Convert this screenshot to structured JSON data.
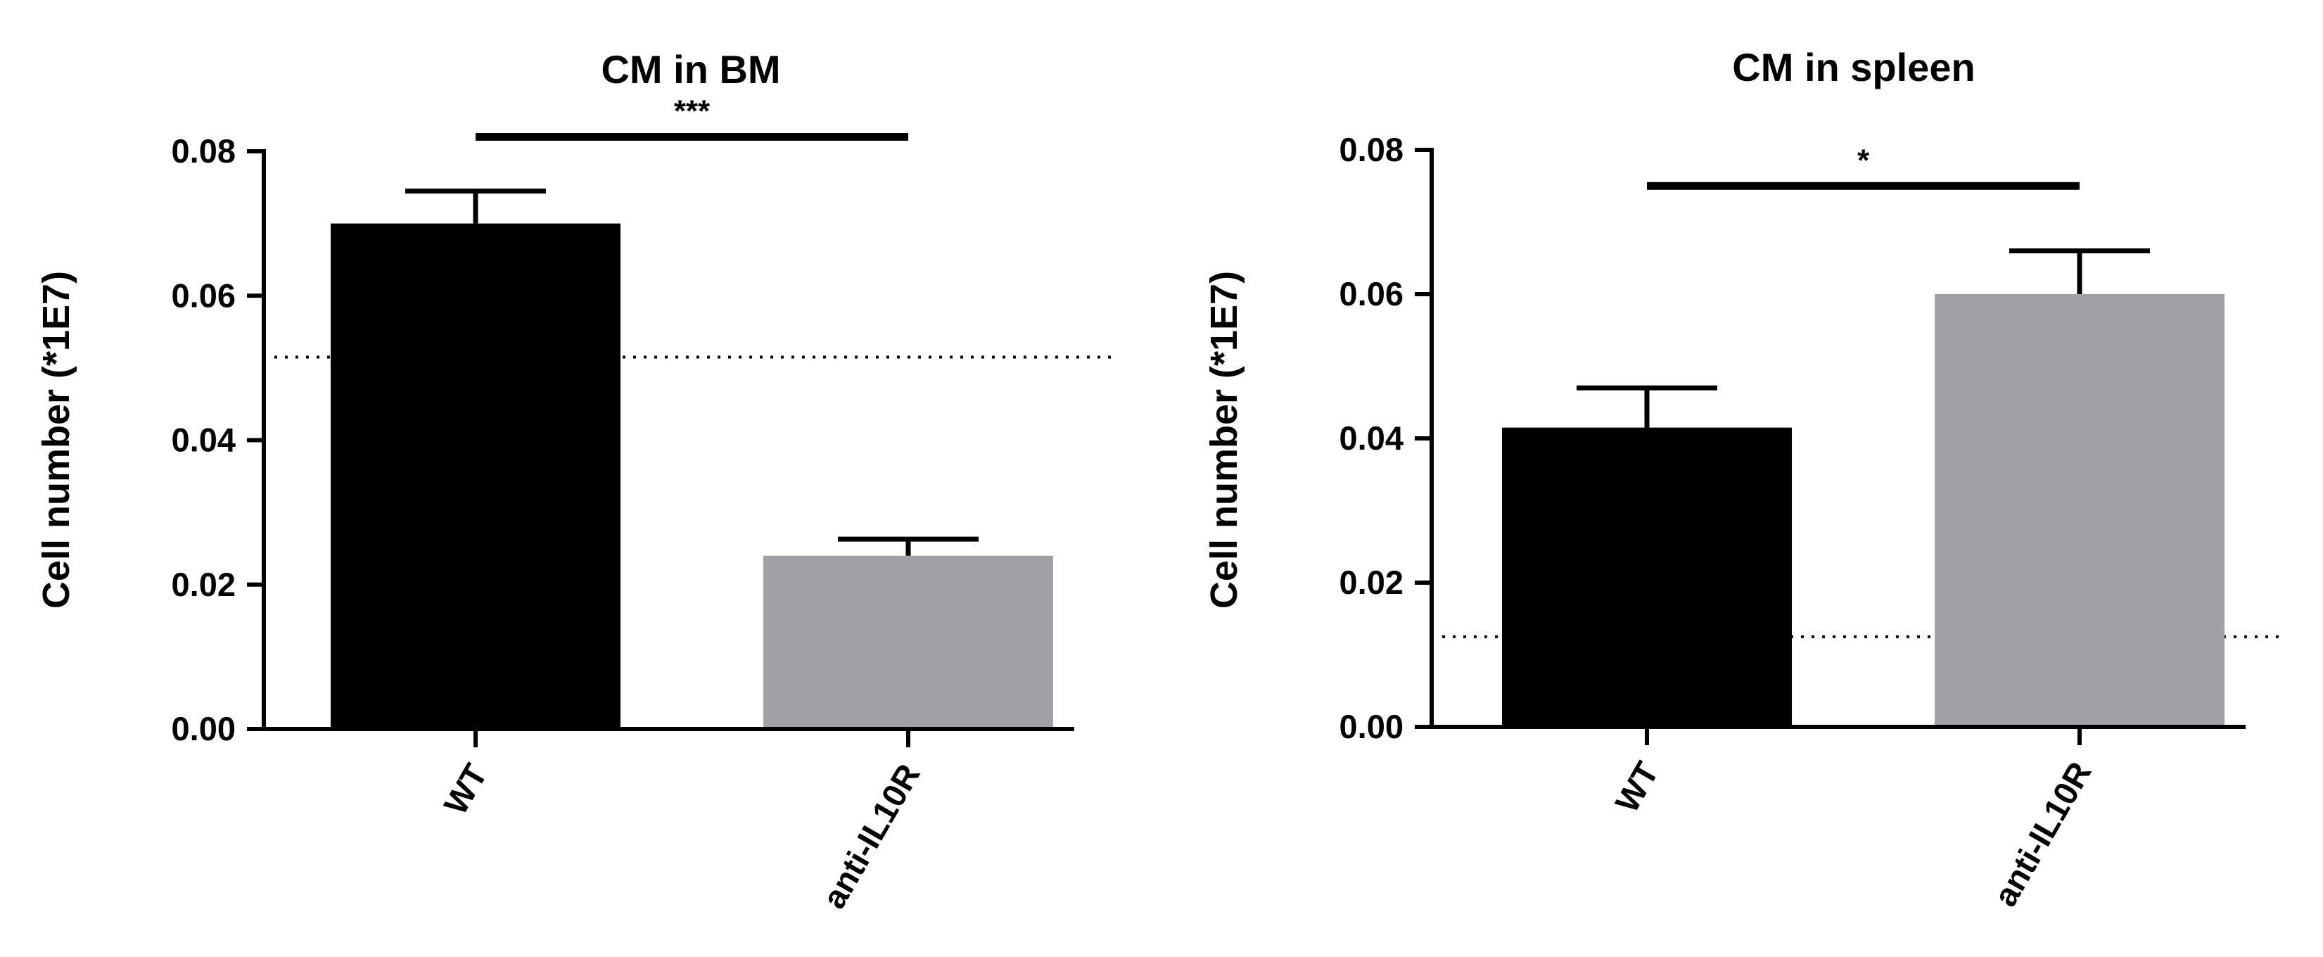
{
  "chart_data": [
    {
      "type": "bar",
      "title": "CM in BM",
      "xlabel": "",
      "ylabel": "Cell number (*1E7)",
      "ylim": [
        0,
        0.08
      ],
      "yticks": [
        "0.00",
        "0.02",
        "0.04",
        "0.06",
        "0.08"
      ],
      "categories": [
        "WT",
        "anti-IL10R"
      ],
      "values": [
        0.07,
        0.024
      ],
      "errors": [
        0.0045,
        0.0023
      ],
      "bar_colors": [
        "#000000",
        "#a2a1a6"
      ],
      "reference_line": 0.0515,
      "significance": {
        "label": "***",
        "between": [
          0,
          1
        ],
        "y": 0.082
      },
      "grid": false
    },
    {
      "type": "bar",
      "title": "CM in spleen",
      "xlabel": "",
      "ylabel": "Cell number (*1E7)",
      "ylim": [
        0,
        0.08
      ],
      "yticks": [
        "0.00",
        "0.02",
        "0.04",
        "0.06",
        "0.08"
      ],
      "categories": [
        "WT",
        "anti-IL10R"
      ],
      "values": [
        0.0415,
        0.06
      ],
      "errors": [
        0.0055,
        0.006
      ],
      "bar_colors": [
        "#000000",
        "#a2a1a6"
      ],
      "reference_line": 0.0125,
      "significance": {
        "label": "*",
        "between": [
          0,
          1
        ],
        "y": 0.075
      },
      "grid": false
    }
  ]
}
